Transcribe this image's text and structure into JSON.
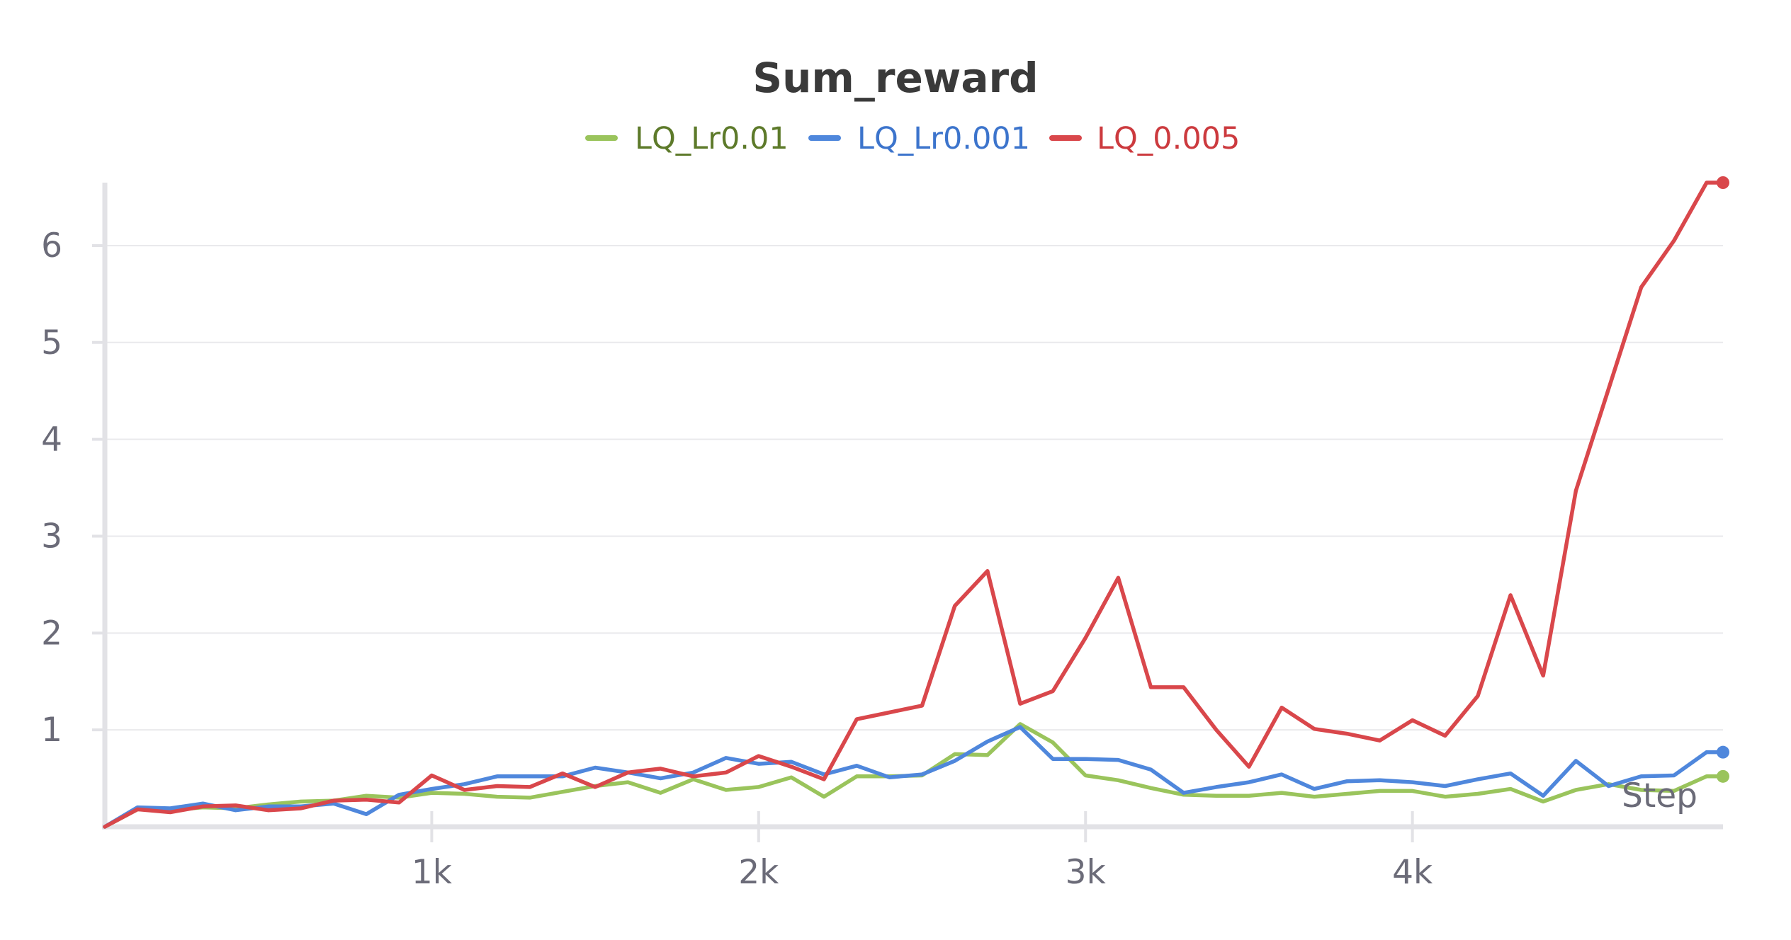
{
  "chart_data": {
    "type": "line",
    "title": "Sum_reward",
    "xlabel": "Step",
    "ylabel": "",
    "xlim": [
      0,
      4950
    ],
    "ylim": [
      0,
      6.65
    ],
    "grid": true,
    "legend_position": "top-center",
    "xticks": [
      {
        "value": 1000,
        "label": "1k"
      },
      {
        "value": 2000,
        "label": "2k"
      },
      {
        "value": 3000,
        "label": "3k"
      },
      {
        "value": 4000,
        "label": "4k"
      }
    ],
    "yticks": [
      {
        "value": 1,
        "label": "1"
      },
      {
        "value": 2,
        "label": "2"
      },
      {
        "value": 3,
        "label": "3"
      },
      {
        "value": 4,
        "label": "4"
      },
      {
        "value": 5,
        "label": "5"
      },
      {
        "value": 6,
        "label": "6"
      }
    ],
    "x": [
      0,
      100,
      200,
      300,
      400,
      500,
      600,
      700,
      800,
      900,
      1000,
      1100,
      1200,
      1300,
      1400,
      1500,
      1600,
      1700,
      1800,
      1900,
      2000,
      2100,
      2200,
      2300,
      2400,
      2500,
      2600,
      2700,
      2800,
      2900,
      3000,
      3100,
      3200,
      3300,
      3400,
      3500,
      3600,
      3700,
      3800,
      3900,
      4000,
      4100,
      4200,
      4300,
      4400,
      4500,
      4600,
      4700,
      4800,
      4900,
      4950
    ],
    "series": [
      {
        "name": "LQ_Lr0.01",
        "color": "#9ac45c",
        "legend_text_color": "#5d7a2a",
        "values": [
          0.0,
          0.18,
          0.17,
          0.2,
          0.19,
          0.23,
          0.26,
          0.27,
          0.32,
          0.3,
          0.35,
          0.34,
          0.31,
          0.3,
          0.36,
          0.42,
          0.46,
          0.35,
          0.49,
          0.38,
          0.41,
          0.51,
          0.31,
          0.52,
          0.52,
          0.53,
          0.75,
          0.74,
          1.06,
          0.87,
          0.53,
          0.48,
          0.4,
          0.33,
          0.32,
          0.32,
          0.35,
          0.31,
          0.34,
          0.37,
          0.37,
          0.31,
          0.34,
          0.39,
          0.26,
          0.38,
          0.44,
          0.38,
          0.37,
          0.52,
          0.52
        ]
      },
      {
        "name": "LQ_Lr0.001",
        "color": "#4f87dc",
        "legend_text_color": "#3c74cc",
        "values": [
          0.0,
          0.2,
          0.19,
          0.24,
          0.17,
          0.21,
          0.21,
          0.24,
          0.13,
          0.33,
          0.39,
          0.44,
          0.52,
          0.52,
          0.52,
          0.61,
          0.56,
          0.5,
          0.56,
          0.71,
          0.65,
          0.67,
          0.54,
          0.63,
          0.51,
          0.54,
          0.68,
          0.88,
          1.03,
          0.7,
          0.7,
          0.69,
          0.59,
          0.35,
          0.41,
          0.46,
          0.54,
          0.39,
          0.47,
          0.48,
          0.46,
          0.42,
          0.49,
          0.55,
          0.32,
          0.68,
          0.42,
          0.52,
          0.53,
          0.77,
          0.77
        ]
      },
      {
        "name": "LQ_0.005",
        "color": "#d9474b",
        "legend_text_color": "#cc3a3e",
        "values": [
          0.0,
          0.18,
          0.15,
          0.21,
          0.22,
          0.17,
          0.19,
          0.27,
          0.28,
          0.25,
          0.53,
          0.38,
          0.42,
          0.41,
          0.55,
          0.41,
          0.56,
          0.6,
          0.52,
          0.56,
          0.73,
          0.62,
          0.49,
          1.11,
          1.18,
          1.25,
          2.28,
          2.64,
          1.27,
          1.4,
          1.95,
          2.57,
          1.44,
          1.44,
          1.0,
          0.62,
          1.23,
          1.01,
          0.96,
          0.89,
          1.1,
          0.94,
          1.35,
          2.39,
          1.56,
          3.47,
          4.52,
          5.57,
          6.05,
          6.65,
          6.65
        ]
      }
    ]
  }
}
